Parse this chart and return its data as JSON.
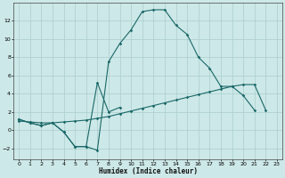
{
  "background_color": "#cde8e8",
  "grid_color": "#aacece",
  "line_color": "#1a6868",
  "xlabel": "Humidex (Indice chaleur)",
  "xlim": [
    -0.5,
    23.5
  ],
  "ylim": [
    -3.2,
    14.0
  ],
  "xticks": [
    0,
    1,
    2,
    3,
    4,
    5,
    6,
    7,
    8,
    9,
    10,
    11,
    12,
    13,
    14,
    15,
    16,
    17,
    18,
    19,
    20,
    21,
    22,
    23
  ],
  "yticks": [
    -2,
    0,
    2,
    4,
    6,
    8,
    10,
    12
  ],
  "line1_x": [
    0,
    1,
    2,
    3,
    4,
    5,
    6,
    7,
    8,
    9,
    10,
    11,
    12,
    13,
    14,
    15,
    16,
    17,
    18,
    19,
    20,
    21,
    22
  ],
  "line1_y": [
    1.2,
    0.8,
    0.5,
    0.8,
    -0.2,
    -1.8,
    -1.8,
    -2.2,
    7.5,
    9.5,
    11.0,
    13.0,
    13.2,
    13.2,
    11.5,
    10.5,
    8.0,
    6.8,
    4.8,
    4.8,
    3.8,
    2.2,
    null
  ],
  "line2_x": [
    0,
    1,
    2,
    3,
    4,
    5,
    6,
    7,
    8,
    9
  ],
  "line2_y": [
    1.2,
    0.8,
    0.5,
    0.8,
    -0.2,
    -1.8,
    -1.8,
    5.2,
    2.0,
    2.5
  ],
  "line3_x": [
    0,
    1,
    2,
    3,
    4,
    5,
    6,
    7,
    8,
    9,
    10,
    11,
    12,
    13,
    14,
    15,
    16,
    17,
    18,
    19,
    20,
    21,
    22
  ],
  "line3_y": [
    1.0,
    0.9,
    0.8,
    0.8,
    0.9,
    1.0,
    1.1,
    1.3,
    1.5,
    1.8,
    2.1,
    2.4,
    2.7,
    3.0,
    3.3,
    3.6,
    3.9,
    4.2,
    4.5,
    4.8,
    5.0,
    5.0,
    2.2
  ]
}
